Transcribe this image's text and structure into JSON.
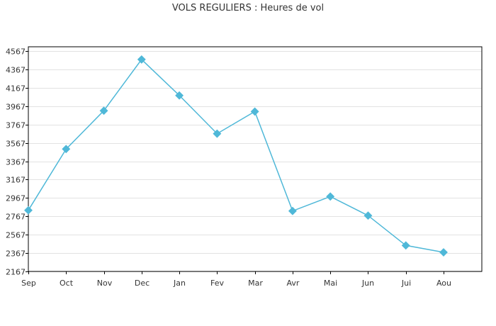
{
  "chart_data": {
    "type": "line",
    "title": "VOLS REGULIERS : Heures de vol",
    "xlabel": "",
    "ylabel": "",
    "categories": [
      "Sep",
      "Oct",
      "Nov",
      "Dec",
      "Jan",
      "Fev",
      "Mar",
      "Avr",
      "Mai",
      "Jun",
      "Jui",
      "Aou"
    ],
    "series": [
      {
        "values": [
          2833,
          3500,
          3917,
          4475,
          4083,
          3667,
          3908,
          2825,
          2983,
          2775,
          2450,
          2375
        ]
      }
    ],
    "yticks": [
      2167,
      2367,
      2567,
      2767,
      2967,
      3167,
      3367,
      3567,
      3767,
      3967,
      4167,
      4367,
      4567
    ],
    "ylim": [
      2167,
      4567
    ],
    "grid": true,
    "color": "#4FB8D8"
  }
}
